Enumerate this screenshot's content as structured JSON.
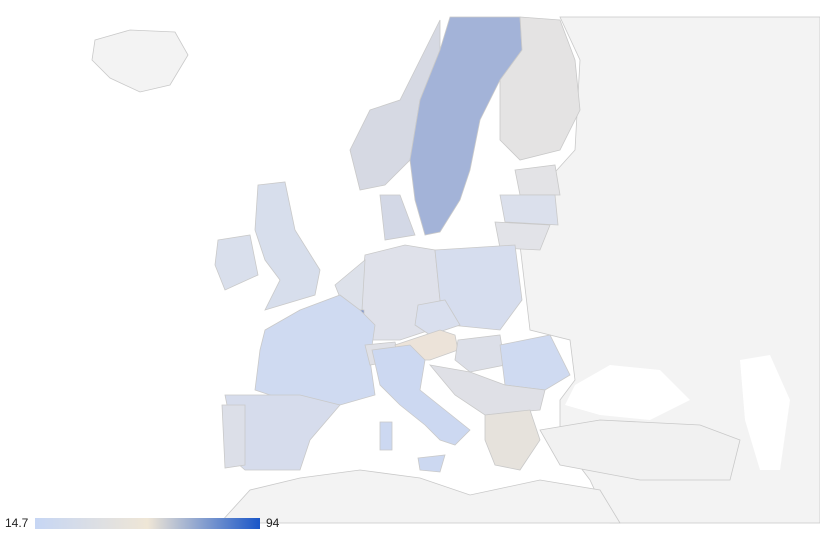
{
  "legend": {
    "min": 14.7,
    "max": 94,
    "colors": [
      "#c6d6f4",
      "#efe6d6",
      "#1a56c8"
    ]
  }
}
